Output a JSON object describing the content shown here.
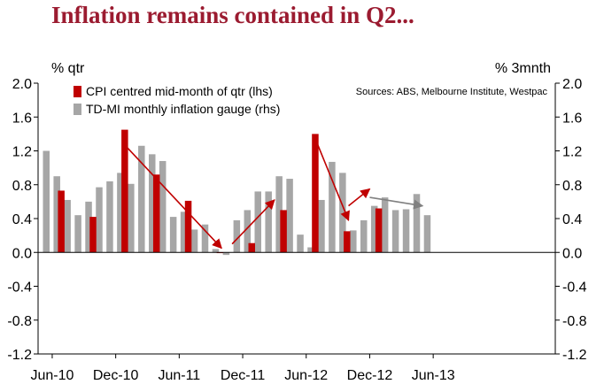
{
  "title": "Inflation remains contained in Q2...",
  "chart_data": {
    "type": "bar",
    "left_axis_label": "% qtr",
    "right_axis_label": "% 3mnth",
    "source_note": "Sources: ABS, Melbourne Institute, Westpac",
    "ylim": [
      -1.2,
      2.0
    ],
    "y_ticks": [
      "2.0",
      "1.6",
      "1.2",
      "0.8",
      "0.4",
      "0.0",
      "-0.4",
      "-0.8",
      "-1.2"
    ],
    "x_tick_labels": [
      "Jun-10",
      "Dec-10",
      "Jun-11",
      "Dec-11",
      "Jun-12",
      "Dec-12",
      "Jun-13"
    ],
    "grid": false,
    "legend_placement": "top-left",
    "colors": {
      "cpi": "#c00000",
      "gauge": "#a6a6a6",
      "arrow_red": "#c00000",
      "arrow_grey": "#808080"
    },
    "series": [
      {
        "name": "CPI centred mid-month of qtr (lhs)",
        "axis": "left",
        "points": [
          {
            "month": "Jul-10",
            "value": 0.73
          },
          {
            "month": "Oct-10",
            "value": 0.42
          },
          {
            "month": "Jan-11",
            "value": 1.45
          },
          {
            "month": "Apr-11",
            "value": 0.92
          },
          {
            "month": "Jul-11",
            "value": 0.61
          },
          {
            "month": "Oct-11",
            "value": 0.0
          },
          {
            "month": "Jan-12",
            "value": 0.11
          },
          {
            "month": "Apr-12",
            "value": 0.5
          },
          {
            "month": "Jul-12",
            "value": 1.4
          },
          {
            "month": "Oct-12",
            "value": 0.25
          },
          {
            "month": "Jan-13",
            "value": 0.52
          }
        ]
      },
      {
        "name": "TD-MI monthly inflation gauge (rhs)",
        "axis": "right",
        "points": [
          {
            "month": "May-10",
            "value": 1.2
          },
          {
            "month": "Jun-10",
            "value": 0.9
          },
          {
            "month": "Jul-10",
            "value": 0.62
          },
          {
            "month": "Aug-10",
            "value": 0.44
          },
          {
            "month": "Sep-10",
            "value": 0.6
          },
          {
            "month": "Oct-10",
            "value": 0.77
          },
          {
            "month": "Nov-10",
            "value": 0.84
          },
          {
            "month": "Dec-10",
            "value": 0.94
          },
          {
            "month": "Jan-11",
            "value": 0.81
          },
          {
            "month": "Feb-11",
            "value": 1.26
          },
          {
            "month": "Mar-11",
            "value": 1.16
          },
          {
            "month": "Apr-11",
            "value": 1.08
          },
          {
            "month": "May-11",
            "value": 0.42
          },
          {
            "month": "Jun-11",
            "value": 0.48
          },
          {
            "month": "Jul-11",
            "value": 0.27
          },
          {
            "month": "Aug-11",
            "value": 0.33
          },
          {
            "month": "Sep-11",
            "value": 0.04
          },
          {
            "month": "Oct-11",
            "value": -0.03
          },
          {
            "month": "Nov-11",
            "value": 0.38
          },
          {
            "month": "Dec-11",
            "value": 0.5
          },
          {
            "month": "Jan-12",
            "value": 0.72
          },
          {
            "month": "Feb-12",
            "value": 0.72
          },
          {
            "month": "Mar-12",
            "value": 0.9
          },
          {
            "month": "Apr-12",
            "value": 0.87
          },
          {
            "month": "May-12",
            "value": 0.21
          },
          {
            "month": "Jun-12",
            "value": 0.06
          },
          {
            "month": "Jul-12",
            "value": 0.62
          },
          {
            "month": "Aug-12",
            "value": 1.07
          },
          {
            "month": "Sep-12",
            "value": 0.94
          },
          {
            "month": "Oct-12",
            "value": 0.26
          },
          {
            "month": "Nov-12",
            "value": 0.38
          },
          {
            "month": "Dec-12",
            "value": 0.55
          },
          {
            "month": "Jan-13",
            "value": 0.65
          },
          {
            "month": "Feb-13",
            "value": 0.5
          },
          {
            "month": "Mar-13",
            "value": 0.51
          },
          {
            "month": "Apr-13",
            "value": 0.69
          },
          {
            "month": "May-13",
            "value": 0.44
          }
        ]
      }
    ],
    "arrows": [
      {
        "color": "red",
        "from": {
          "month": "Jan-11",
          "value": 1.25
        },
        "to": {
          "month": "Oct-11",
          "value": 0.05
        }
      },
      {
        "color": "red",
        "from": {
          "month": "Nov-11",
          "value": 0.1
        },
        "to": {
          "month": "Mar-12",
          "value": 0.62
        }
      },
      {
        "color": "red",
        "from": {
          "month": "Jul-12",
          "value": 1.3
        },
        "to": {
          "month": "Oct-12",
          "value": 0.38
        }
      },
      {
        "color": "red",
        "from": {
          "month": "Oct-12",
          "value": 0.55
        },
        "to": {
          "month": "Dec-12",
          "value": 0.75
        }
      },
      {
        "color": "grey",
        "from": {
          "month": "Dec-12",
          "value": 0.65
        },
        "to": {
          "month": "May-13",
          "value": 0.55
        }
      }
    ]
  }
}
